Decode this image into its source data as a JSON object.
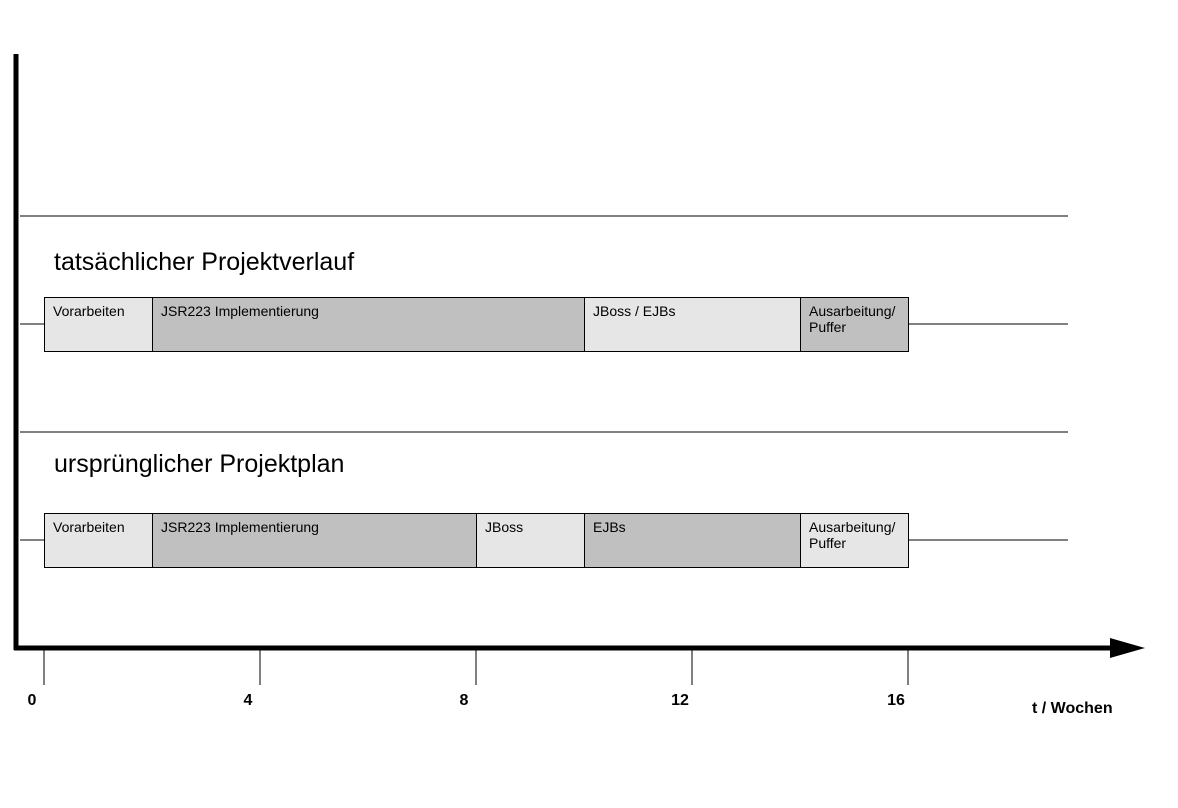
{
  "chart_data": {
    "type": "gantt",
    "xlabel": "t / Wochen",
    "x_ticks": [
      0,
      4,
      8,
      12,
      16
    ],
    "xlim": [
      0,
      16
    ],
    "rows": [
      {
        "title": "tatsächlicher Projektverlauf",
        "tasks": [
          {
            "label": "Vorarbeiten",
            "start": 0,
            "end": 2,
            "shade": "light"
          },
          {
            "label": "JSR223 Implementierung",
            "start": 2,
            "end": 10,
            "shade": "dark"
          },
          {
            "label": "JBoss / EJBs",
            "start": 10,
            "end": 14,
            "shade": "light"
          },
          {
            "label": "Ausarbeitung/\nPuffer",
            "start": 14,
            "end": 16,
            "shade": "dark"
          }
        ]
      },
      {
        "title": "ursprünglicher Projektplan",
        "tasks": [
          {
            "label": "Vorarbeiten",
            "start": 0,
            "end": 2,
            "shade": "light"
          },
          {
            "label": "JSR223 Implementierung",
            "start": 2,
            "end": 8,
            "shade": "dark"
          },
          {
            "label": "JBoss",
            "start": 8,
            "end": 10,
            "shade": "light"
          },
          {
            "label": "EJBs",
            "start": 10,
            "end": 14,
            "shade": "dark"
          },
          {
            "label": "Ausarbeitung/\nPuffer",
            "start": 14,
            "end": 16,
            "shade": "light"
          }
        ]
      }
    ]
  },
  "colors": {
    "light": "#e6e6e6",
    "dark": "#c0c0c0",
    "line": "#000000"
  }
}
